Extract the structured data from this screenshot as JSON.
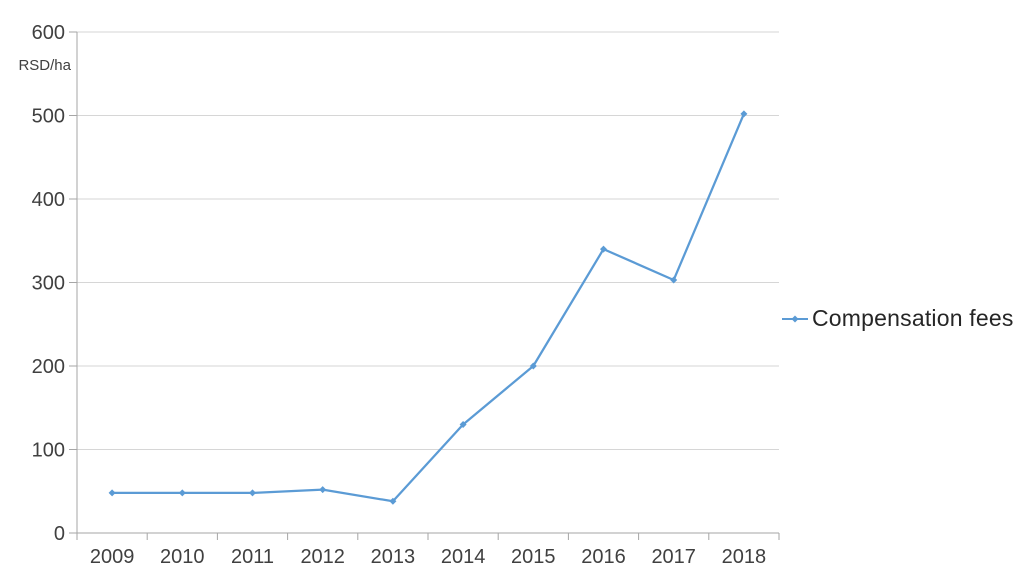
{
  "chart_data": {
    "type": "line",
    "title": "",
    "xlabel": "",
    "ylabel": "RSD/ha",
    "categories": [
      "2009",
      "2010",
      "2011",
      "2012",
      "2013",
      "2014",
      "2015",
      "2016",
      "2017",
      "2018"
    ],
    "series": [
      {
        "name": "Compensation fees",
        "values": [
          48,
          48,
          48,
          52,
          38,
          130,
          200,
          340,
          303,
          502
        ]
      }
    ],
    "ylim": [
      0,
      600
    ],
    "ytick_interval": 100,
    "yticks": [
      0,
      100,
      200,
      300,
      400,
      500,
      600
    ],
    "grid": true,
    "legend_position": "right",
    "marker": "diamond"
  },
  "colors": {
    "line": "#5B9BD5",
    "grid": "#D6D6D6",
    "axis": "#A6A6A6",
    "tick_label": "#404040",
    "unit_label": "#404040",
    "legend_text": "#262626",
    "background": "#FFFFFF"
  }
}
